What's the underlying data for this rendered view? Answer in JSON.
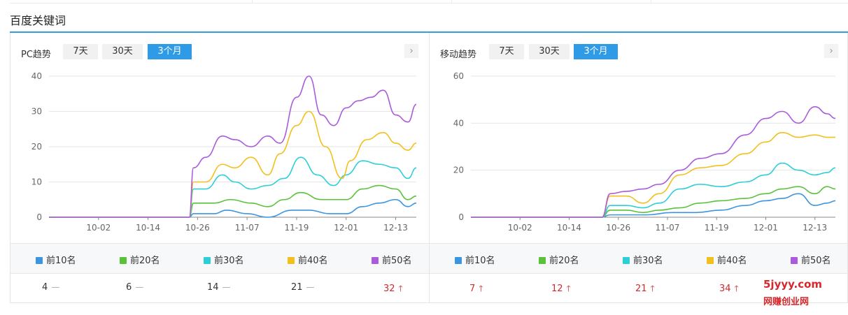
{
  "section_title": "百度关键词",
  "colors": {
    "top10": "#3c95e0",
    "top20": "#5ac23a",
    "top30": "#2ccfd8",
    "top40": "#f2c01c",
    "top50": "#a95bdb",
    "up": "#d4282c",
    "accent": "#2f9be6"
  },
  "watermark": {
    "line1": "5jyyy.com",
    "line2": "网赚创业网"
  },
  "panels": [
    {
      "title": "PC趋势",
      "tabs": [
        "7天",
        "30天",
        "3个月"
      ],
      "active_tab": "3个月",
      "next_icon": "chevron-right-icon",
      "legend": [
        {
          "label": "前10名",
          "value": "4",
          "trend": "flat"
        },
        {
          "label": "前20名",
          "value": "6",
          "trend": "flat"
        },
        {
          "label": "前30名",
          "value": "14",
          "trend": "flat"
        },
        {
          "label": "前40名",
          "value": "21",
          "trend": "flat"
        },
        {
          "label": "前50名",
          "value": "32",
          "trend": "up"
        }
      ]
    },
    {
      "title": "移动趋势",
      "tabs": [
        "7天",
        "30天",
        "3个月"
      ],
      "active_tab": "3个月",
      "next_icon": "chevron-right-icon",
      "legend": [
        {
          "label": "前10名",
          "value": "7",
          "trend": "up"
        },
        {
          "label": "前20名",
          "value": "12",
          "trend": "up"
        },
        {
          "label": "前30名",
          "value": "21",
          "trend": "up"
        },
        {
          "label": "前40名",
          "value": "34",
          "trend": "up"
        },
        {
          "label": "前50名",
          "value": "",
          "trend": "up"
        }
      ]
    }
  ],
  "chart_data": [
    {
      "type": "line",
      "xticks": [
        "10-02",
        "10-14",
        "10-26",
        "11-07",
        "11-19",
        "12-01",
        "12-13"
      ],
      "x_start": "09-20",
      "x_end": "12-18",
      "ylim": [
        0,
        40
      ],
      "yticks": [
        0,
        10,
        20,
        30,
        40
      ],
      "grid": true,
      "series": [
        {
          "name": "前10名",
          "x": [
            "09-20",
            "10-24",
            "10-25",
            "10-30",
            "11-02",
            "11-07",
            "11-12",
            "11-18",
            "11-22",
            "11-27",
            "12-01",
            "12-05",
            "12-09",
            "12-13",
            "12-16",
            "12-18"
          ],
          "values": [
            0,
            0,
            1,
            1,
            2,
            1,
            0,
            2,
            2,
            1,
            1,
            3,
            4,
            5,
            3,
            4
          ]
        },
        {
          "name": "前20名",
          "x": [
            "09-20",
            "10-24",
            "10-25",
            "10-30",
            "11-03",
            "11-08",
            "11-12",
            "11-16",
            "11-20",
            "11-25",
            "12-01",
            "12-05",
            "12-09",
            "12-13",
            "12-16",
            "12-18"
          ],
          "values": [
            0,
            0,
            4,
            4,
            5,
            4,
            3,
            5,
            7,
            5,
            5,
            8,
            9,
            8,
            5,
            6
          ]
        },
        {
          "name": "前30名",
          "x": [
            "09-20",
            "10-24",
            "10-25",
            "10-28",
            "11-01",
            "11-04",
            "11-08",
            "11-12",
            "11-16",
            "11-20",
            "11-24",
            "11-28",
            "12-01",
            "12-05",
            "12-09",
            "12-13",
            "12-16",
            "12-18"
          ],
          "values": [
            0,
            0,
            8,
            8,
            12,
            10,
            8,
            9,
            11,
            17,
            12,
            9,
            12,
            16,
            15,
            14,
            11,
            14
          ]
        },
        {
          "name": "前40名",
          "x": [
            "09-20",
            "10-24",
            "10-25",
            "10-28",
            "11-01",
            "11-04",
            "11-08",
            "11-12",
            "11-15",
            "11-19",
            "11-22",
            "11-26",
            "11-30",
            "12-02",
            "12-06",
            "12-10",
            "12-13",
            "12-16",
            "12-18"
          ],
          "values": [
            0,
            0,
            10,
            10,
            15,
            14,
            17,
            12,
            18,
            26,
            30,
            20,
            11,
            16,
            22,
            24,
            21,
            19,
            21
          ]
        },
        {
          "name": "前50名",
          "x": [
            "09-20",
            "10-24",
            "10-25",
            "10-28",
            "11-01",
            "11-04",
            "11-08",
            "11-12",
            "11-15",
            "11-19",
            "11-22",
            "11-25",
            "11-28",
            "12-01",
            "12-04",
            "12-07",
            "12-10",
            "12-13",
            "12-16",
            "12-18"
          ],
          "values": [
            0,
            0,
            14,
            17,
            23,
            22,
            20,
            23,
            21,
            34,
            40,
            29,
            26,
            31,
            33,
            34,
            36,
            29,
            27,
            32
          ]
        }
      ]
    },
    {
      "type": "line",
      "xticks": [
        "10-02",
        "10-14",
        "10-26",
        "11-07",
        "11-19",
        "12-01",
        "12-13"
      ],
      "x_start": "09-20",
      "x_end": "12-18",
      "ylim": [
        0,
        60
      ],
      "yticks": [
        0,
        20,
        40,
        60
      ],
      "grid": true,
      "series": [
        {
          "name": "前10名",
          "x": [
            "09-20",
            "10-22",
            "10-24",
            "10-28",
            "11-02",
            "11-08",
            "11-14",
            "11-20",
            "11-26",
            "12-01",
            "12-05",
            "12-09",
            "12-13",
            "12-16",
            "12-18"
          ],
          "values": [
            0,
            0,
            1,
            1,
            1,
            2,
            2,
            3,
            5,
            7,
            8,
            10,
            5,
            6,
            7
          ]
        },
        {
          "name": "前20名",
          "x": [
            "09-20",
            "10-22",
            "10-24",
            "10-28",
            "11-01",
            "11-05",
            "11-10",
            "11-15",
            "11-20",
            "11-26",
            "12-01",
            "12-05",
            "12-09",
            "12-13",
            "12-16",
            "12-18"
          ],
          "values": [
            0,
            0,
            3,
            3,
            2,
            3,
            4,
            6,
            7,
            8,
            10,
            12,
            13,
            10,
            13,
            12
          ]
        },
        {
          "name": "前30名",
          "x": [
            "09-20",
            "10-22",
            "10-24",
            "10-28",
            "11-01",
            "11-05",
            "11-10",
            "11-15",
            "11-20",
            "11-26",
            "12-01",
            "12-05",
            "12-09",
            "12-13",
            "12-16",
            "12-18"
          ],
          "values": [
            0,
            0,
            5,
            5,
            4,
            6,
            12,
            14,
            13,
            15,
            18,
            23,
            20,
            18,
            19,
            21
          ]
        },
        {
          "name": "前40名",
          "x": [
            "09-20",
            "10-22",
            "10-24",
            "10-28",
            "11-01",
            "11-05",
            "11-10",
            "11-15",
            "11-20",
            "11-26",
            "12-01",
            "12-05",
            "12-09",
            "12-13",
            "12-16",
            "12-18"
          ],
          "values": [
            0,
            0,
            9,
            9,
            6,
            10,
            18,
            21,
            22,
            27,
            32,
            36,
            34,
            35,
            34,
            34
          ]
        },
        {
          "name": "前50名",
          "x": [
            "09-20",
            "10-22",
            "10-24",
            "10-28",
            "11-01",
            "11-05",
            "11-10",
            "11-15",
            "11-20",
            "11-26",
            "12-01",
            "12-05",
            "12-09",
            "12-13",
            "12-16",
            "12-18"
          ],
          "values": [
            0,
            0,
            10,
            11,
            12,
            14,
            20,
            25,
            27,
            35,
            42,
            45,
            40,
            47,
            44,
            42
          ]
        }
      ]
    }
  ]
}
